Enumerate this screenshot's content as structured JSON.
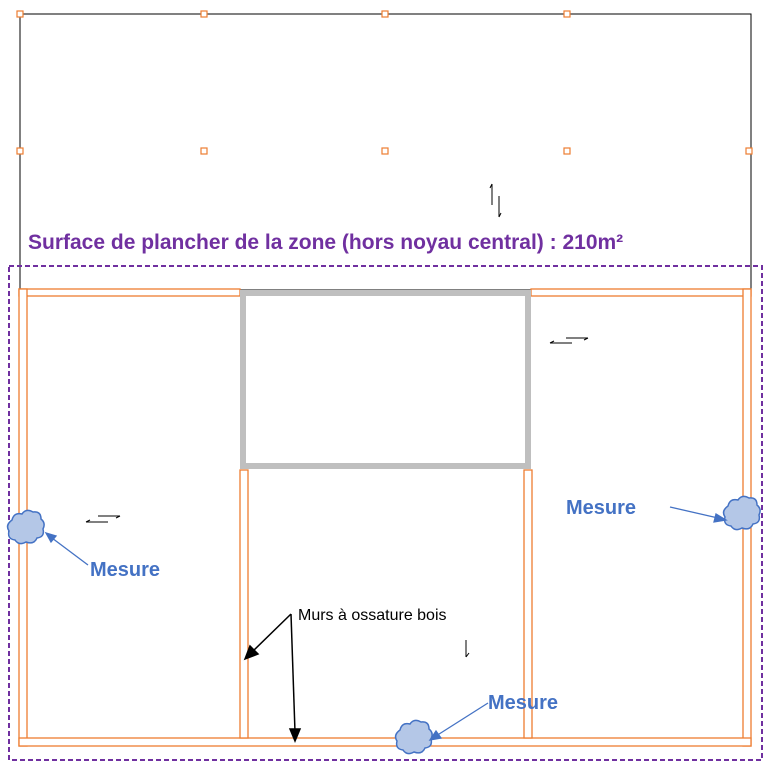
{
  "zone_title": "Surface de plancher de la zone (hors noyau central) : 210m²",
  "wall_label": "Murs à ossature bois",
  "measures": [
    {
      "label": "Mesure"
    },
    {
      "label": "Mesure"
    },
    {
      "label": "Mesure"
    }
  ],
  "colors": {
    "zone_title": "#7030a0",
    "zone_border": "#7030a0",
    "timber_wall": "#f4a460",
    "timber_wall_stroke": "#ed7d31",
    "core": "#bfbfbf",
    "measure": "#4472c4",
    "measure_fill": "#b4c7e7",
    "anchor": "#ed7d31",
    "outline": "#000000"
  }
}
